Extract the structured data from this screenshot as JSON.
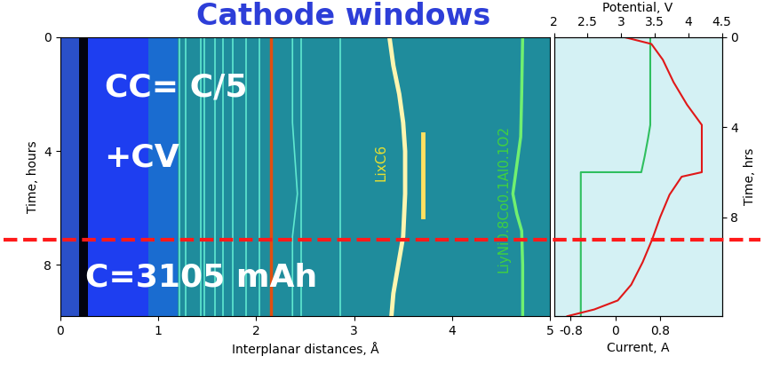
{
  "chart_data": [
    {
      "type": "line",
      "title": "Cathode windows",
      "x_label": "Interplanar distances, Å",
      "y_label": "Time, hours",
      "xlim": [
        0,
        5
      ],
      "xticks": [
        0,
        1,
        2,
        3,
        4,
        5
      ],
      "ylim": [
        9.8,
        0
      ],
      "yticks": [
        0,
        4,
        8
      ],
      "bands": [
        {
          "from": 0,
          "to": 0.19,
          "color": "#2a50c8"
        },
        {
          "from": 0.19,
          "to": 0.28,
          "color": "#02030f"
        },
        {
          "from": 0.28,
          "to": 0.9,
          "color": "#1e3ef0"
        },
        {
          "from": 0.9,
          "to": 1.2,
          "color": "#1a6cd0"
        }
      ],
      "series": [
        {
          "color": "#5fe8d0",
          "x": [
            1.22,
            1.22
          ],
          "y": [
            0,
            9.8
          ]
        },
        {
          "color": "#5fe8d0",
          "x": [
            1.28,
            1.28
          ],
          "y": [
            0,
            9.8
          ]
        },
        {
          "color": "#5fe8d0",
          "x": [
            1.43,
            1.43
          ],
          "y": [
            0,
            9.8
          ]
        },
        {
          "color": "#5fe8d0",
          "x": [
            1.47,
            1.47
          ],
          "y": [
            0,
            9.8
          ]
        },
        {
          "color": "#5fe8d0",
          "x": [
            1.58,
            1.58
          ],
          "y": [
            0,
            9.8
          ]
        },
        {
          "color": "#5fe8d0",
          "x": [
            1.66,
            1.66
          ],
          "y": [
            0,
            9.8
          ]
        },
        {
          "color": "#5fe8d0",
          "x": [
            1.76,
            1.76
          ],
          "y": [
            0,
            9.8
          ]
        },
        {
          "color": "#5fe8d0",
          "x": [
            1.9,
            1.9
          ],
          "y": [
            0,
            9.8
          ]
        },
        {
          "color": "#5fe8d0",
          "x": [
            2.03,
            2.03
          ],
          "y": [
            0,
            9.8
          ]
        },
        {
          "color": "#e05010",
          "x": [
            2.15,
            2.15
          ],
          "y": [
            0,
            9.8
          ]
        },
        {
          "color": "#5fe8d0",
          "x": [
            2.37,
            2.37,
            2.42,
            2.37,
            2.37
          ],
          "y": [
            0,
            3,
            5.5,
            7,
            9.8
          ]
        },
        {
          "color": "#5fe8d0",
          "x": [
            2.46,
            2.46
          ],
          "y": [
            0,
            9.8
          ]
        },
        {
          "color": "#5fe8d0",
          "x": [
            2.86,
            2.86
          ],
          "y": [
            0,
            9.8
          ]
        },
        {
          "color": "#fff6b0",
          "x": [
            3.36,
            3.4,
            3.46,
            3.5,
            3.52,
            3.52,
            3.5,
            3.45,
            3.4,
            3.38
          ],
          "y": [
            0,
            1,
            2,
            3,
            4,
            5.5,
            7,
            8,
            9,
            9.8
          ]
        },
        {
          "color": "#ffe060",
          "x": [
            3.7,
            3.7
          ],
          "y": [
            3.4,
            6.3
          ]
        },
        {
          "color": "#70f070",
          "x": [
            4.72,
            4.71,
            4.7,
            4.66,
            4.62,
            4.66,
            4.71,
            4.72,
            4.72
          ],
          "y": [
            0,
            2,
            3.5,
            4.5,
            5.5,
            6.2,
            6.8,
            8,
            9.8
          ]
        }
      ],
      "reference_line": {
        "y": 7.1,
        "color": "#ff1a1a",
        "line_style": "dashed"
      },
      "annotations": [
        {
          "text": "CC= C/5",
          "color": "#ffffff"
        },
        {
          "text": "+CV",
          "color": "#ffffff"
        },
        {
          "text": "C=3105 mAh",
          "color": "#ffffff"
        },
        {
          "text": "LixC6",
          "color": "#e8e030"
        },
        {
          "text": "LiyNi0.8Co0.1Al0.1O2",
          "color": "#40d040"
        }
      ]
    },
    {
      "type": "line",
      "x_label": "Current, A",
      "x2_label": "Potential, V",
      "y_label": "Time, hrs",
      "xlim": [
        -1.1,
        1.9
      ],
      "xticks": [
        -0.8,
        0,
        0.8
      ],
      "x2lim": [
        2,
        4.5
      ],
      "x2ticks": [
        2,
        2.5,
        3,
        3.5,
        4,
        4.5
      ],
      "ylim": [
        12.4,
        0
      ],
      "yticks": [
        0,
        4,
        8
      ],
      "series": [
        {
          "axis": "x2",
          "color": "#e01818",
          "x": [
            3.05,
            3.45,
            3.62,
            3.78,
            3.98,
            4.2,
            4.2,
            3.9,
            3.72,
            3.58,
            3.46,
            3.32,
            3.15,
            2.95,
            2.6,
            2.2
          ],
          "y": [
            0,
            0.3,
            1,
            2,
            3,
            3.9,
            6.0,
            6.2,
            7,
            8,
            9,
            10,
            11,
            11.7,
            12.1,
            12.4
          ]
        },
        {
          "color": "#2fbf5f",
          "x": [
            0.62,
            0.62,
            0.58,
            0.52,
            0.46,
            -0.62,
            -0.62
          ],
          "y": [
            0,
            3.9,
            4.5,
            5.3,
            6.0,
            6.0,
            12.4
          ]
        }
      ]
    }
  ]
}
